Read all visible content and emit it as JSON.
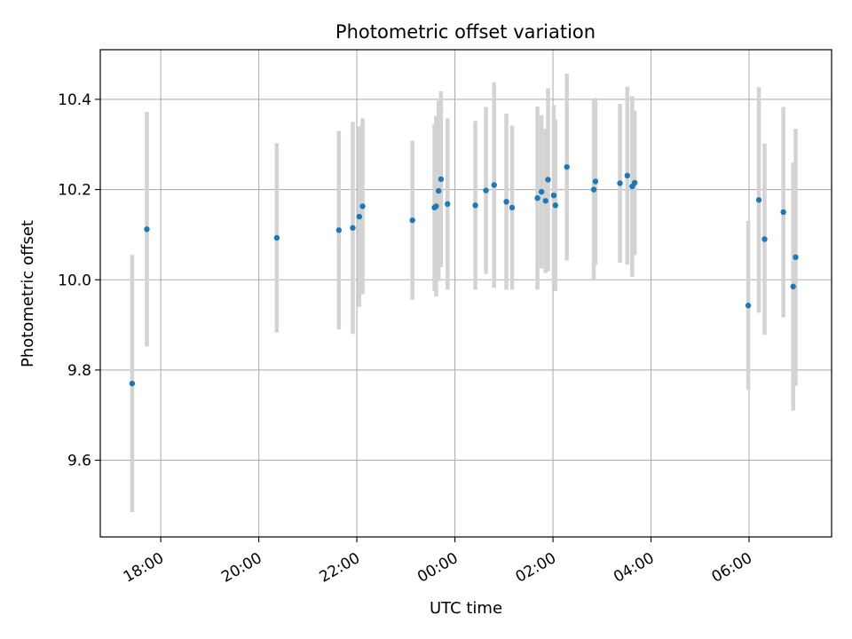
{
  "chart_data": {
    "type": "scatter",
    "title": "Photometric offset variation",
    "xlabel": "UTC time",
    "ylabel": "Photometric offset",
    "x_axis_type": "time",
    "x_axis_start_date": "2020-01-01",
    "xlim": [
      "2020-01-01T16:46",
      "2020-01-02T07:41"
    ],
    "ylim": [
      9.43,
      10.51
    ],
    "x_ticks": [
      {
        "t": "2020-01-01T18:00",
        "label": "18:00"
      },
      {
        "t": "2020-01-01T20:00",
        "label": "20:00"
      },
      {
        "t": "2020-01-01T22:00",
        "label": "22:00"
      },
      {
        "t": "2020-01-02T00:00",
        "label": "00:00"
      },
      {
        "t": "2020-01-02T02:00",
        "label": "02:00"
      },
      {
        "t": "2020-01-02T04:00",
        "label": "04:00"
      },
      {
        "t": "2020-01-02T06:00",
        "label": "06:00"
      }
    ],
    "y_ticks": [
      9.6,
      9.8,
      10.0,
      10.2,
      10.4
    ],
    "y_tick_labels": [
      "9.6",
      "9.8",
      "10.0",
      "10.2",
      "10.4"
    ],
    "grid": true,
    "colors": {
      "marker": "#1f77b4",
      "errorbar": "#d3d3d3",
      "grid": "#b0b0b0"
    },
    "points": [
      {
        "t": "2020-01-01T17:25",
        "y": 9.77,
        "err": 0.285
      },
      {
        "t": "2020-01-01T17:43",
        "y": 10.112,
        "err": 0.26
      },
      {
        "t": "2020-01-01T20:22",
        "y": 10.093,
        "err": 0.21
      },
      {
        "t": "2020-01-01T21:38",
        "y": 10.11,
        "err": 0.22
      },
      {
        "t": "2020-01-01T21:55",
        "y": 10.115,
        "err": 0.235
      },
      {
        "t": "2020-01-01T22:03",
        "y": 10.14,
        "err": 0.2
      },
      {
        "t": "2020-01-01T22:07",
        "y": 10.163,
        "err": 0.195
      },
      {
        "t": "2020-01-01T23:08",
        "y": 10.132,
        "err": 0.176
      },
      {
        "t": "2020-01-01T23:35",
        "y": 10.16,
        "err": 0.185
      },
      {
        "t": "2020-01-01T23:37",
        "y": 10.163,
        "err": 0.2
      },
      {
        "t": "2020-01-01T23:40",
        "y": 10.197,
        "err": 0.2
      },
      {
        "t": "2020-01-01T23:43",
        "y": 10.223,
        "err": 0.195
      },
      {
        "t": "2020-01-01T23:51",
        "y": 10.168,
        "err": 0.19
      },
      {
        "t": "2020-01-02T00:25",
        "y": 10.165,
        "err": 0.187
      },
      {
        "t": "2020-01-02T00:38",
        "y": 10.198,
        "err": 0.185
      },
      {
        "t": "2020-01-02T00:48",
        "y": 10.21,
        "err": 0.228
      },
      {
        "t": "2020-01-02T01:03",
        "y": 10.173,
        "err": 0.195
      },
      {
        "t": "2020-01-02T01:10",
        "y": 10.16,
        "err": 0.182
      },
      {
        "t": "2020-01-02T01:41",
        "y": 10.181,
        "err": 0.203
      },
      {
        "t": "2020-01-02T01:46",
        "y": 10.195,
        "err": 0.17
      },
      {
        "t": "2020-01-02T01:51",
        "y": 10.175,
        "err": 0.16
      },
      {
        "t": "2020-01-02T01:54",
        "y": 10.222,
        "err": 0.203
      },
      {
        "t": "2020-01-02T02:01",
        "y": 10.187,
        "err": 0.2
      },
      {
        "t": "2020-01-02T02:03",
        "y": 10.165,
        "err": 0.19
      },
      {
        "t": "2020-01-02T02:17",
        "y": 10.25,
        "err": 0.207
      },
      {
        "t": "2020-01-02T02:50",
        "y": 10.2,
        "err": 0.2
      },
      {
        "t": "2020-01-02T02:52",
        "y": 10.218,
        "err": 0.185
      },
      {
        "t": "2020-01-02T03:22",
        "y": 10.214,
        "err": 0.176
      },
      {
        "t": "2020-01-02T03:31",
        "y": 10.231,
        "err": 0.197
      },
      {
        "t": "2020-01-02T03:37",
        "y": 10.207,
        "err": 0.2
      },
      {
        "t": "2020-01-02T03:40",
        "y": 10.215,
        "err": 0.16
      },
      {
        "t": "2020-01-02T05:59",
        "y": 9.943,
        "err": 0.187
      },
      {
        "t": "2020-01-02T06:12",
        "y": 10.177,
        "err": 0.25
      },
      {
        "t": "2020-01-02T06:19",
        "y": 10.09,
        "err": 0.212
      },
      {
        "t": "2020-01-02T06:42",
        "y": 10.15,
        "err": 0.233
      },
      {
        "t": "2020-01-02T06:54",
        "y": 9.985,
        "err": 0.275
      },
      {
        "t": "2020-01-02T06:57",
        "y": 10.05,
        "err": 0.285
      }
    ]
  }
}
